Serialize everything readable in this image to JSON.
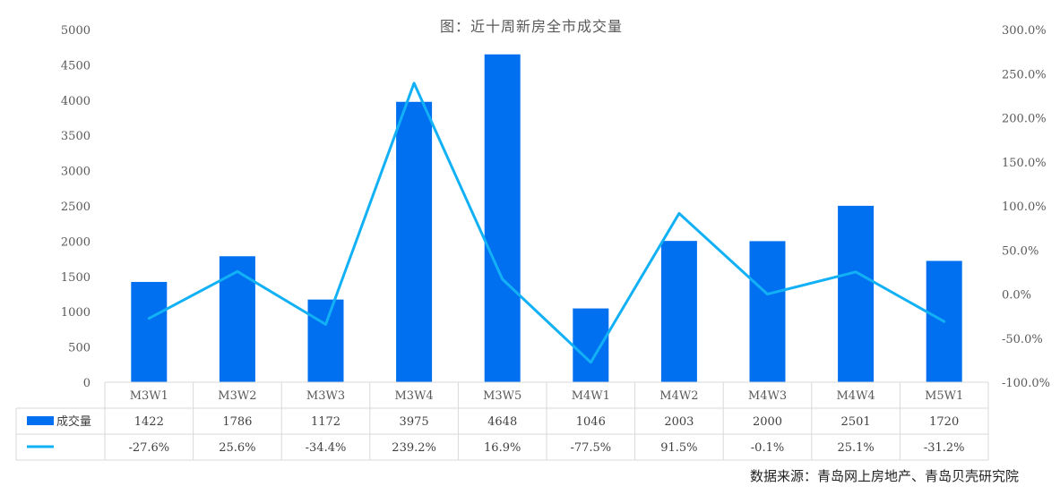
{
  "chart_data": {
    "type": "bar",
    "title": "图：近十周新房全市成交量",
    "categories": [
      "M3W1",
      "M3W2",
      "M3W3",
      "M3W4",
      "M3W5",
      "M4W1",
      "M4W2",
      "M4W3",
      "M4W4",
      "M5W1"
    ],
    "series": [
      {
        "name": "成交量",
        "type": "bar",
        "axis": "left",
        "color": "#0070f0",
        "values": [
          1422,
          1786,
          1172,
          3975,
          4648,
          1046,
          2003,
          2000,
          2501,
          1720
        ],
        "labels": [
          "1422",
          "1786",
          "1172",
          "3975",
          "4648",
          "1046",
          "2003",
          "2000",
          "2501",
          "1720"
        ]
      },
      {
        "name": "",
        "type": "line",
        "axis": "right",
        "color": "#12b0f5",
        "values": [
          -27.6,
          25.6,
          -34.4,
          239.2,
          16.9,
          -77.5,
          91.5,
          -0.1,
          25.1,
          -31.2
        ],
        "labels": [
          "-27.6%",
          "25.6%",
          "-34.4%",
          "239.2%",
          "16.9%",
          "-77.5%",
          "91.5%",
          "-0.1%",
          "25.1%",
          "-31.2%"
        ]
      }
    ],
    "y_left": {
      "min": 0,
      "max": 5000,
      "step": 500,
      "tick_labels": [
        "0",
        "500",
        "1000",
        "1500",
        "2000",
        "2500",
        "3000",
        "3500",
        "4000",
        "4500",
        "5000"
      ]
    },
    "y_right": {
      "min": -100,
      "max": 300,
      "step": 50,
      "tick_labels": [
        "-100.0%",
        "-50.0%",
        "0.0%",
        "50.0%",
        "100.0%",
        "150.0%",
        "200.0%",
        "250.0%",
        "300.0%"
      ]
    },
    "grid": false,
    "legend": "data-table"
  },
  "footer": {
    "source": "数据来源：青岛网上房地产、青岛贝壳研究院"
  }
}
